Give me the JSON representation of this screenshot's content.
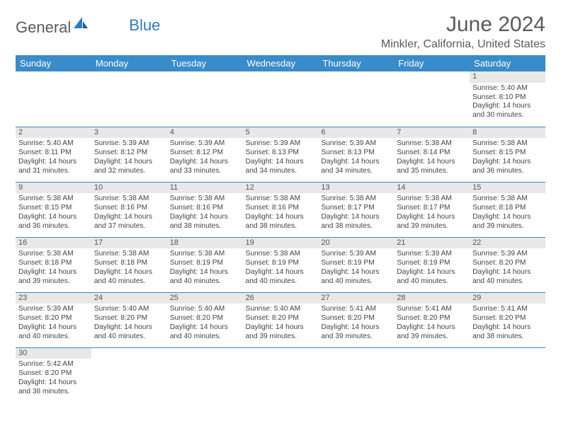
{
  "logo": {
    "word1": "General",
    "word2": "Blue"
  },
  "title": "June 2024",
  "location": "Minkler, California, United States",
  "colors": {
    "header_bg": "#3a8bc9",
    "header_text": "#ffffff",
    "cell_border": "#3a8bc9",
    "date_strip_bg": "#e8e8e8",
    "logo_accent": "#2e7cc0",
    "body_text": "#444444"
  },
  "day_headers": [
    "Sunday",
    "Monday",
    "Tuesday",
    "Wednesday",
    "Thursday",
    "Friday",
    "Saturday"
  ],
  "weeks": [
    [
      null,
      null,
      null,
      null,
      null,
      null,
      {
        "date": "1",
        "sunrise": "Sunrise: 5:40 AM",
        "sunset": "Sunset: 8:10 PM",
        "daylight": "Daylight: 14 hours and 30 minutes."
      }
    ],
    [
      {
        "date": "2",
        "sunrise": "Sunrise: 5:40 AM",
        "sunset": "Sunset: 8:11 PM",
        "daylight": "Daylight: 14 hours and 31 minutes."
      },
      {
        "date": "3",
        "sunrise": "Sunrise: 5:39 AM",
        "sunset": "Sunset: 8:12 PM",
        "daylight": "Daylight: 14 hours and 32 minutes."
      },
      {
        "date": "4",
        "sunrise": "Sunrise: 5:39 AM",
        "sunset": "Sunset: 8:12 PM",
        "daylight": "Daylight: 14 hours and 33 minutes."
      },
      {
        "date": "5",
        "sunrise": "Sunrise: 5:39 AM",
        "sunset": "Sunset: 8:13 PM",
        "daylight": "Daylight: 14 hours and 34 minutes."
      },
      {
        "date": "6",
        "sunrise": "Sunrise: 5:39 AM",
        "sunset": "Sunset: 8:13 PM",
        "daylight": "Daylight: 14 hours and 34 minutes."
      },
      {
        "date": "7",
        "sunrise": "Sunrise: 5:38 AM",
        "sunset": "Sunset: 8:14 PM",
        "daylight": "Daylight: 14 hours and 35 minutes."
      },
      {
        "date": "8",
        "sunrise": "Sunrise: 5:38 AM",
        "sunset": "Sunset: 8:15 PM",
        "daylight": "Daylight: 14 hours and 36 minutes."
      }
    ],
    [
      {
        "date": "9",
        "sunrise": "Sunrise: 5:38 AM",
        "sunset": "Sunset: 8:15 PM",
        "daylight": "Daylight: 14 hours and 36 minutes."
      },
      {
        "date": "10",
        "sunrise": "Sunrise: 5:38 AM",
        "sunset": "Sunset: 8:16 PM",
        "daylight": "Daylight: 14 hours and 37 minutes."
      },
      {
        "date": "11",
        "sunrise": "Sunrise: 5:38 AM",
        "sunset": "Sunset: 8:16 PM",
        "daylight": "Daylight: 14 hours and 38 minutes."
      },
      {
        "date": "12",
        "sunrise": "Sunrise: 5:38 AM",
        "sunset": "Sunset: 8:16 PM",
        "daylight": "Daylight: 14 hours and 38 minutes."
      },
      {
        "date": "13",
        "sunrise": "Sunrise: 5:38 AM",
        "sunset": "Sunset: 8:17 PM",
        "daylight": "Daylight: 14 hours and 38 minutes."
      },
      {
        "date": "14",
        "sunrise": "Sunrise: 5:38 AM",
        "sunset": "Sunset: 8:17 PM",
        "daylight": "Daylight: 14 hours and 39 minutes."
      },
      {
        "date": "15",
        "sunrise": "Sunrise: 5:38 AM",
        "sunset": "Sunset: 8:18 PM",
        "daylight": "Daylight: 14 hours and 39 minutes."
      }
    ],
    [
      {
        "date": "16",
        "sunrise": "Sunrise: 5:38 AM",
        "sunset": "Sunset: 8:18 PM",
        "daylight": "Daylight: 14 hours and 39 minutes."
      },
      {
        "date": "17",
        "sunrise": "Sunrise: 5:38 AM",
        "sunset": "Sunset: 8:18 PM",
        "daylight": "Daylight: 14 hours and 40 minutes."
      },
      {
        "date": "18",
        "sunrise": "Sunrise: 5:38 AM",
        "sunset": "Sunset: 8:19 PM",
        "daylight": "Daylight: 14 hours and 40 minutes."
      },
      {
        "date": "19",
        "sunrise": "Sunrise: 5:38 AM",
        "sunset": "Sunset: 8:19 PM",
        "daylight": "Daylight: 14 hours and 40 minutes."
      },
      {
        "date": "20",
        "sunrise": "Sunrise: 5:39 AM",
        "sunset": "Sunset: 8:19 PM",
        "daylight": "Daylight: 14 hours and 40 minutes."
      },
      {
        "date": "21",
        "sunrise": "Sunrise: 5:39 AM",
        "sunset": "Sunset: 8:19 PM",
        "daylight": "Daylight: 14 hours and 40 minutes."
      },
      {
        "date": "22",
        "sunrise": "Sunrise: 5:39 AM",
        "sunset": "Sunset: 8:20 PM",
        "daylight": "Daylight: 14 hours and 40 minutes."
      }
    ],
    [
      {
        "date": "23",
        "sunrise": "Sunrise: 5:39 AM",
        "sunset": "Sunset: 8:20 PM",
        "daylight": "Daylight: 14 hours and 40 minutes."
      },
      {
        "date": "24",
        "sunrise": "Sunrise: 5:40 AM",
        "sunset": "Sunset: 8:20 PM",
        "daylight": "Daylight: 14 hours and 40 minutes."
      },
      {
        "date": "25",
        "sunrise": "Sunrise: 5:40 AM",
        "sunset": "Sunset: 8:20 PM",
        "daylight": "Daylight: 14 hours and 40 minutes."
      },
      {
        "date": "26",
        "sunrise": "Sunrise: 5:40 AM",
        "sunset": "Sunset: 8:20 PM",
        "daylight": "Daylight: 14 hours and 39 minutes."
      },
      {
        "date": "27",
        "sunrise": "Sunrise: 5:41 AM",
        "sunset": "Sunset: 8:20 PM",
        "daylight": "Daylight: 14 hours and 39 minutes."
      },
      {
        "date": "28",
        "sunrise": "Sunrise: 5:41 AM",
        "sunset": "Sunset: 8:20 PM",
        "daylight": "Daylight: 14 hours and 39 minutes."
      },
      {
        "date": "29",
        "sunrise": "Sunrise: 5:41 AM",
        "sunset": "Sunset: 8:20 PM",
        "daylight": "Daylight: 14 hours and 38 minutes."
      }
    ],
    [
      {
        "date": "30",
        "sunrise": "Sunrise: 5:42 AM",
        "sunset": "Sunset: 8:20 PM",
        "daylight": "Daylight: 14 hours and 38 minutes."
      },
      null,
      null,
      null,
      null,
      null,
      null
    ]
  ]
}
